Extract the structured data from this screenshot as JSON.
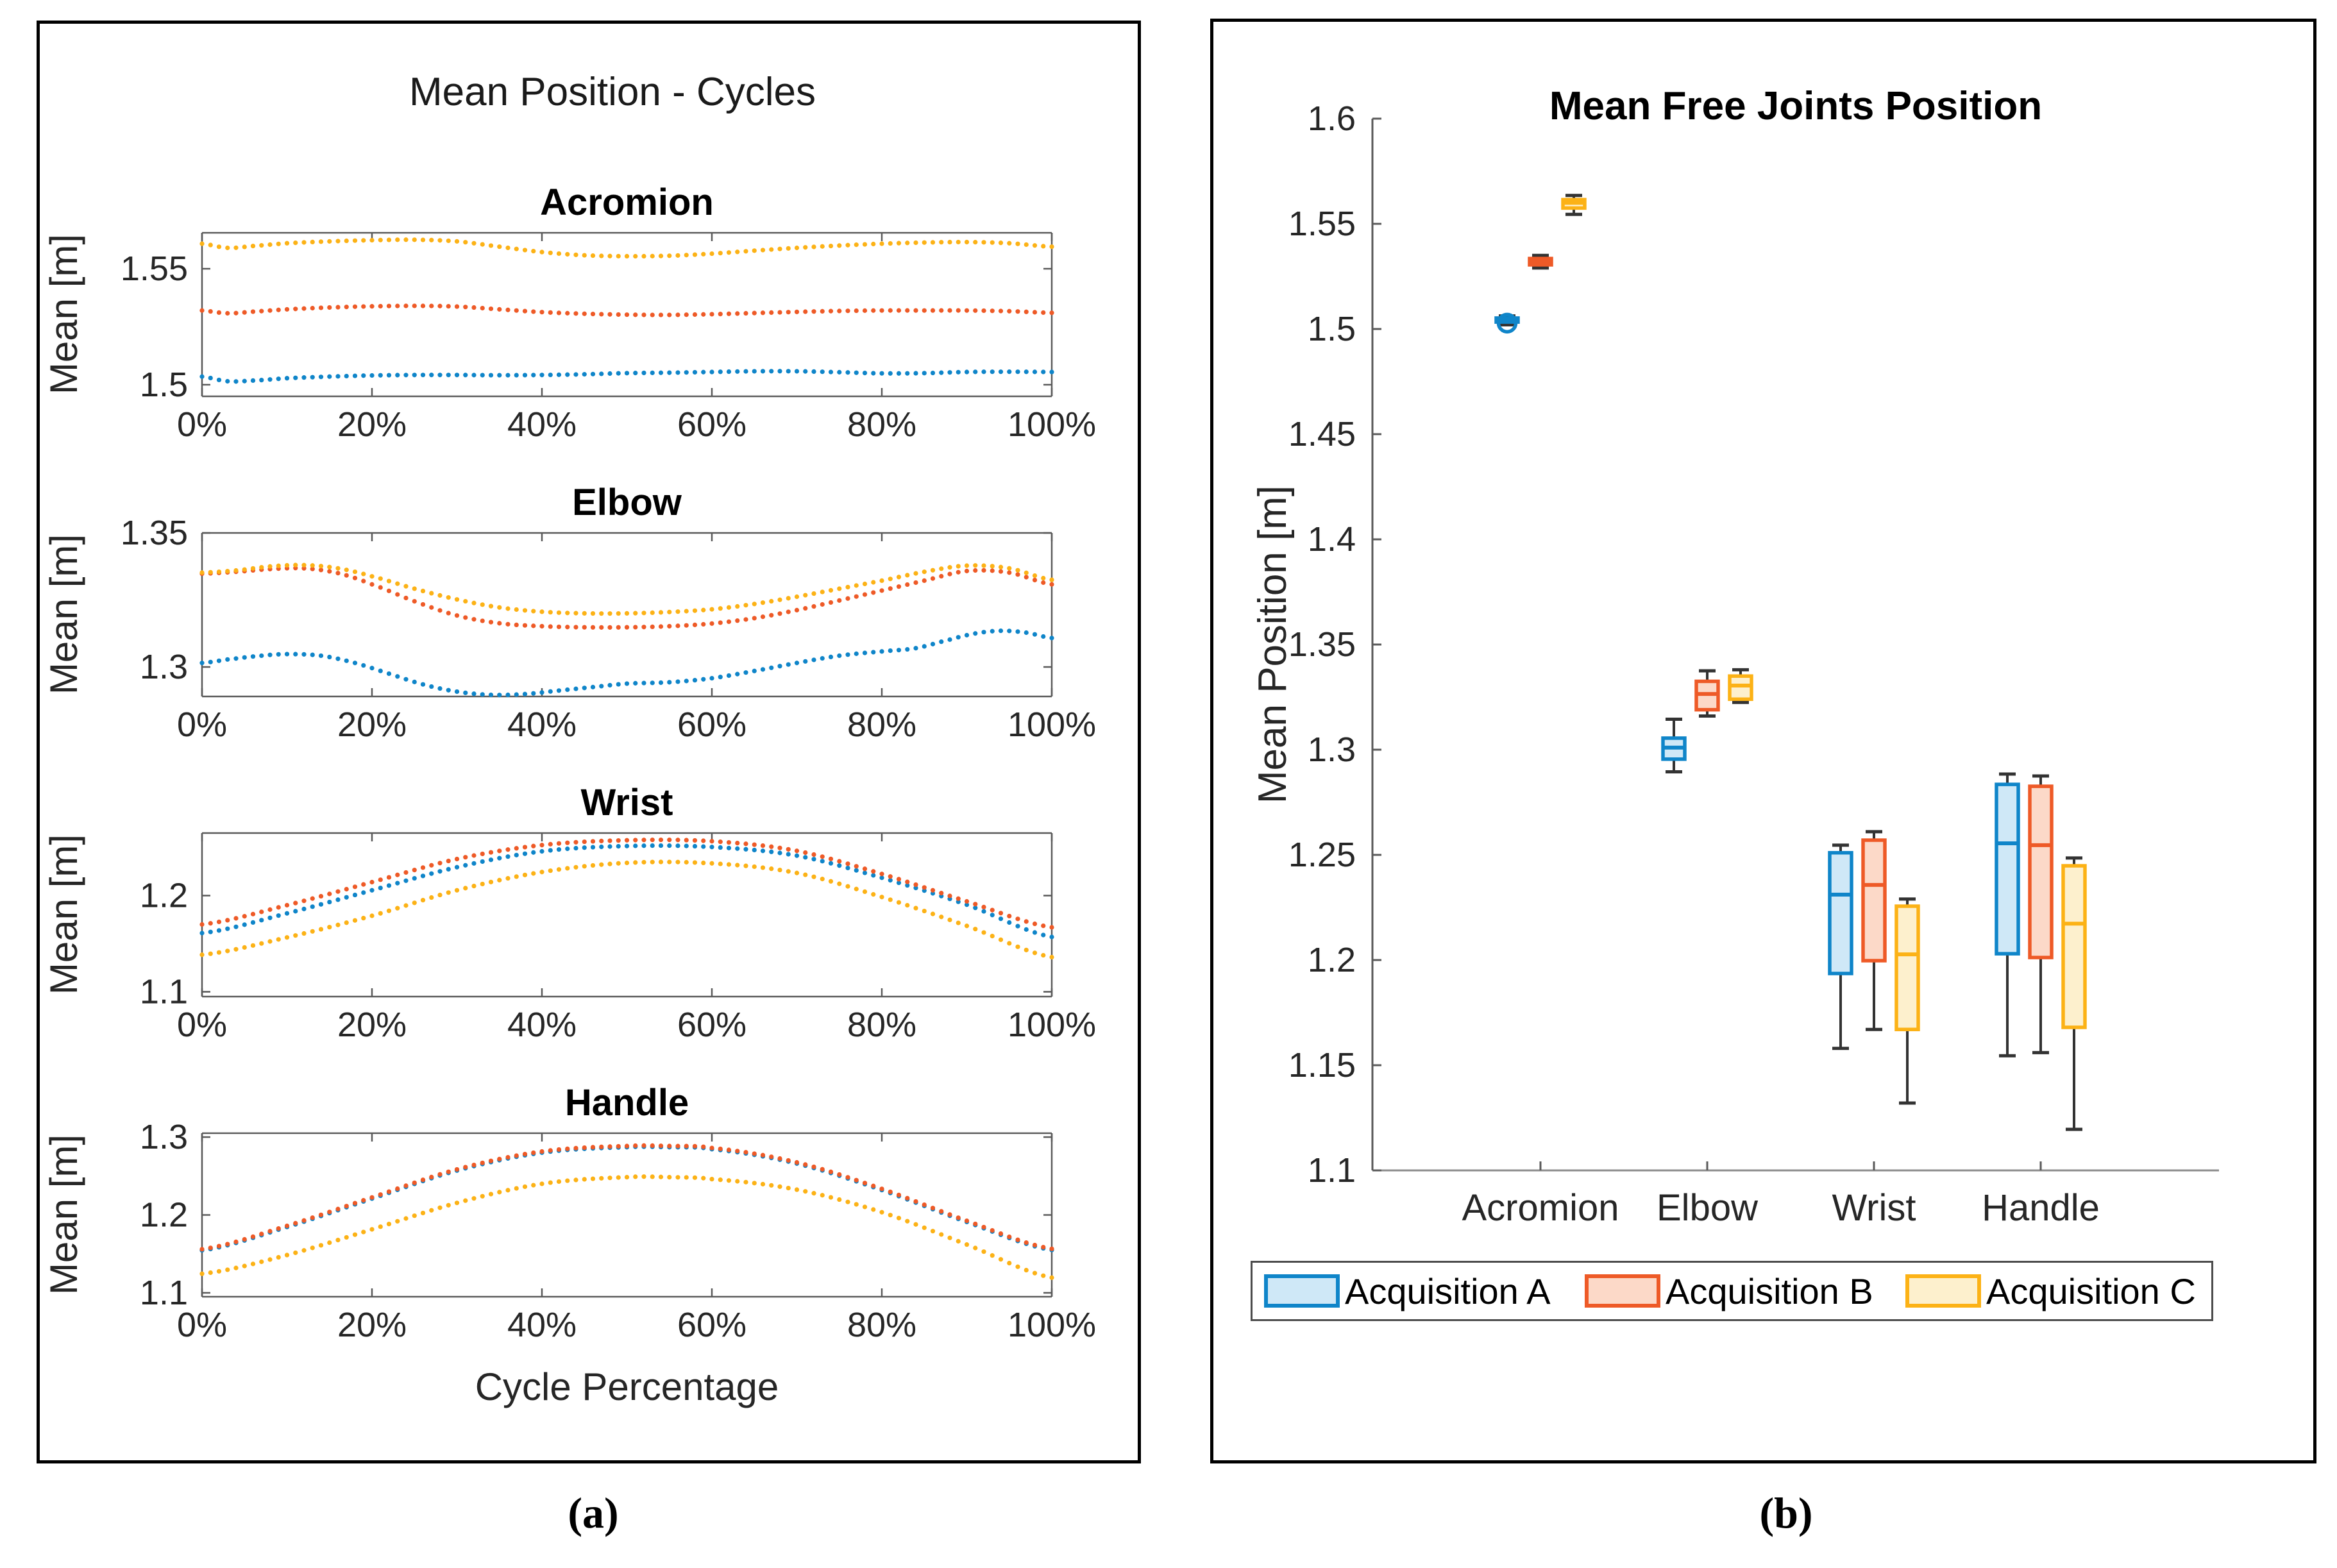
{
  "figure": {
    "captions": {
      "a": "(a)",
      "b": "(b)"
    }
  },
  "colors": {
    "blue": {
      "edge": "#0f85c9",
      "fill": "#cfe8f7"
    },
    "orange": {
      "edge": "#ee5a27",
      "fill": "#fcd9c8"
    },
    "yellow": {
      "edge": "#fcb216",
      "fill": "#fdf0cd"
    },
    "whisker": "#333333",
    "spine": "#5a5a5a"
  },
  "chart_data": [
    {
      "type": "line",
      "panel": "a",
      "title": "Mean Position - Cycles",
      "xlabel": "Cycle Percentage",
      "style": "dotted",
      "x_tick_values": [
        0,
        20,
        40,
        60,
        80,
        100
      ],
      "x_tick_labels": [
        "0%",
        "20%",
        "40%",
        "60%",
        "80%",
        "100%"
      ],
      "xlim": [
        0,
        100
      ],
      "grid": false,
      "subplots": [
        {
          "title": "Acromion",
          "ylabel": "Mean [m]",
          "ylim": [
            1.495,
            1.5655
          ],
          "yticks": [
            1.5,
            1.55
          ],
          "ytick_labels": [
            "1.5",
            "1.55"
          ],
          "series": [
            {
              "name": "Acquisition A",
              "color_key": "blue",
              "x": [
                0,
                3,
                6,
                10,
                15,
                20,
                25,
                30,
                35,
                40,
                45,
                50,
                55,
                60,
                65,
                70,
                75,
                80,
                85,
                90,
                95,
                100
              ],
              "y": [
                1.5035,
                1.5015,
                1.5018,
                1.5028,
                1.5035,
                1.504,
                1.5042,
                1.5042,
                1.5041,
                1.5042,
                1.5045,
                1.505,
                1.5052,
                1.5055,
                1.5058,
                1.5058,
                1.5054,
                1.5049,
                1.505,
                1.5055,
                1.5056,
                1.5055
              ]
            },
            {
              "name": "Acquisition B",
              "color_key": "orange",
              "x": [
                0,
                3,
                6,
                10,
                15,
                20,
                25,
                30,
                35,
                40,
                45,
                50,
                55,
                60,
                65,
                70,
                75,
                80,
                85,
                90,
                95,
                100
              ],
              "y": [
                1.532,
                1.5308,
                1.5315,
                1.5325,
                1.5333,
                1.5338,
                1.534,
                1.5337,
                1.5325,
                1.5313,
                1.5306,
                1.5302,
                1.5301,
                1.5304,
                1.5309,
                1.5314,
                1.5318,
                1.532,
                1.532,
                1.532,
                1.5317,
                1.531
              ]
            },
            {
              "name": "Acquisition C",
              "color_key": "yellow",
              "x": [
                0,
                3,
                6,
                10,
                15,
                20,
                25,
                30,
                35,
                40,
                45,
                50,
                55,
                60,
                65,
                70,
                75,
                80,
                85,
                90,
                95,
                100
              ],
              "y": [
                1.5608,
                1.559,
                1.5598,
                1.561,
                1.5618,
                1.5623,
                1.5625,
                1.5618,
                1.5595,
                1.5572,
                1.5558,
                1.5554,
                1.5556,
                1.5565,
                1.5578,
                1.559,
                1.56,
                1.5608,
                1.5613,
                1.5615,
                1.561,
                1.5595
              ]
            }
          ]
        },
        {
          "title": "Elbow",
          "ylabel": "Mean [m]",
          "ylim": [
            1.289,
            1.35
          ],
          "yticks": [
            1.3,
            1.35
          ],
          "ytick_labels": [
            "1.3",
            "1.35"
          ],
          "series": [
            {
              "name": "Acquisition A",
              "color_key": "blue",
              "x": [
                0,
                3,
                7,
                10,
                14,
                18,
                22,
                26,
                30,
                34,
                38,
                42,
                46,
                50,
                55,
                60,
                65,
                70,
                75,
                80,
                84,
                88,
                91,
                94,
                97,
                100
              ],
              "y": [
                1.3015,
                1.3028,
                1.3042,
                1.3048,
                1.3042,
                1.3015,
                1.2975,
                1.2935,
                1.2908,
                1.2896,
                1.2899,
                1.2912,
                1.2925,
                1.2938,
                1.2943,
                1.2958,
                1.2985,
                1.3015,
                1.3042,
                1.3058,
                1.307,
                1.3102,
                1.3125,
                1.3135,
                1.3128,
                1.3108
              ]
            },
            {
              "name": "Acquisition B",
              "color_key": "orange",
              "x": [
                0,
                4,
                8,
                12,
                16,
                20,
                25,
                30,
                35,
                40,
                45,
                50,
                55,
                60,
                65,
                70,
                75,
                80,
                85,
                90,
                95,
                100
              ],
              "y": [
                1.3348,
                1.3355,
                1.3365,
                1.3368,
                1.335,
                1.3308,
                1.3245,
                1.3192,
                1.3163,
                1.3152,
                1.3148,
                1.3148,
                1.3152,
                1.3162,
                1.3182,
                1.3212,
                1.3248,
                1.3285,
                1.3322,
                1.3358,
                1.3352,
                1.3308
              ]
            },
            {
              "name": "Acquisition C",
              "color_key": "yellow",
              "x": [
                0,
                4,
                8,
                12,
                16,
                20,
                25,
                30,
                35,
                40,
                45,
                50,
                55,
                60,
                65,
                70,
                75,
                80,
                85,
                90,
                95,
                100
              ],
              "y": [
                1.3352,
                1.336,
                1.3375,
                1.338,
                1.3368,
                1.3338,
                1.3292,
                1.3252,
                1.3222,
                1.3206,
                1.32,
                1.32,
                1.3205,
                1.3215,
                1.3235,
                1.3262,
                1.3292,
                1.3322,
                1.3355,
                1.3378,
                1.3368,
                1.3325
              ]
            }
          ]
        },
        {
          "title": "Wrist",
          "ylabel": "Mean [m]",
          "ylim": [
            1.095,
            1.265
          ],
          "yticks": [
            1.1,
            1.2
          ],
          "ytick_labels": [
            "1.1",
            "1.2"
          ],
          "series": [
            {
              "name": "Acquisition A",
              "color_key": "blue",
              "x": [
                0,
                10,
                20,
                30,
                40,
                50,
                60,
                70,
                80,
                90,
                100
              ],
              "y": [
                1.161,
                1.1815,
                1.2055,
                1.2295,
                1.246,
                1.2515,
                1.2505,
                1.2415,
                1.2185,
                1.1905,
                1.157
              ]
            },
            {
              "name": "Acquisition B",
              "color_key": "orange",
              "x": [
                0,
                10,
                20,
                30,
                40,
                50,
                60,
                70,
                80,
                90,
                100
              ],
              "y": [
                1.17,
                1.19,
                1.214,
                1.238,
                1.2525,
                1.2575,
                1.2565,
                1.2465,
                1.2225,
                1.194,
                1.167
              ]
            },
            {
              "name": "Acquisition C",
              "color_key": "yellow",
              "x": [
                0,
                10,
                20,
                30,
                40,
                50,
                60,
                70,
                80,
                90,
                100
              ],
              "y": [
                1.1385,
                1.1565,
                1.179,
                1.2055,
                1.2245,
                1.234,
                1.2335,
                1.2235,
                1.1985,
                1.1685,
                1.136
              ]
            }
          ]
        },
        {
          "title": "Handle",
          "ylabel": "Mean [m]",
          "ylim": [
            1.095,
            1.305
          ],
          "yticks": [
            1.1,
            1.2,
            1.3
          ],
          "ytick_labels": [
            "1.1",
            "1.2",
            "1.3"
          ],
          "series": [
            {
              "name": "Acquisition A",
              "color_key": "blue",
              "x": [
                0,
                10,
                20,
                30,
                40,
                50,
                55,
                60,
                70,
                80,
                90,
                100
              ],
              "y": [
                1.1545,
                1.1845,
                1.221,
                1.257,
                1.28,
                1.287,
                1.287,
                1.2845,
                1.266,
                1.232,
                1.191,
                1.155
              ]
            },
            {
              "name": "Acquisition B",
              "color_key": "orange",
              "x": [
                0,
                10,
                20,
                30,
                40,
                50,
                55,
                60,
                70,
                80,
                90,
                100
              ],
              "y": [
                1.156,
                1.186,
                1.2225,
                1.2585,
                1.2815,
                1.2885,
                1.2885,
                1.286,
                1.2675,
                1.2335,
                1.1925,
                1.1565
              ]
            },
            {
              "name": "Acquisition C",
              "color_key": "yellow",
              "x": [
                0,
                10,
                20,
                30,
                40,
                50,
                55,
                60,
                70,
                80,
                90,
                100
              ],
              "y": [
                1.1245,
                1.1485,
                1.1815,
                1.2155,
                1.24,
                1.2485,
                1.2485,
                1.246,
                1.2325,
                1.2035,
                1.162,
                1.1195
              ]
            }
          ]
        }
      ]
    },
    {
      "type": "boxplot",
      "panel": "b",
      "title": "Mean Free Joints Position",
      "ylabel": "Mean Position [m]",
      "ylim": [
        1.1,
        1.6
      ],
      "yticks": [
        1.1,
        1.15,
        1.2,
        1.25,
        1.3,
        1.35,
        1.4,
        1.45,
        1.5,
        1.55,
        1.6
      ],
      "ytick_labels": [
        "1.1",
        "1.15",
        "1.2",
        "1.25",
        "1.3",
        "1.35",
        "1.4",
        "1.45",
        "1.5",
        "1.55",
        "1.6"
      ],
      "categories": [
        "Acromion",
        "Elbow",
        "Wrist",
        "Handle"
      ],
      "legend_position": "below",
      "series": [
        {
          "name": "Acquisition A",
          "color_key": "blue",
          "boxes": [
            {
              "category": "Acromion",
              "q1": 1.5033,
              "median": 1.5045,
              "q3": 1.5052,
              "whisker_low": 1.502,
              "whisker_high": 1.5062,
              "outliers": [
                1.5028
              ]
            },
            {
              "category": "Elbow",
              "q1": 1.2955,
              "median": 1.301,
              "q3": 1.3055,
              "whisker_low": 1.2895,
              "whisker_high": 1.3145,
              "outliers": []
            },
            {
              "category": "Wrist",
              "q1": 1.1936,
              "median": 1.2311,
              "q3": 1.251,
              "whisker_low": 1.158,
              "whisker_high": 1.2546,
              "outliers": []
            },
            {
              "category": "Handle",
              "q1": 1.203,
              "median": 1.2555,
              "q3": 1.2835,
              "whisker_low": 1.1545,
              "whisker_high": 1.2884,
              "outliers": []
            }
          ]
        },
        {
          "name": "Acquisition B",
          "color_key": "orange",
          "boxes": [
            {
              "category": "Acromion",
              "q1": 1.5305,
              "median": 1.532,
              "q3": 1.5335,
              "whisker_low": 1.529,
              "whisker_high": 1.535,
              "outliers": []
            },
            {
              "category": "Elbow",
              "q1": 1.319,
              "median": 1.3265,
              "q3": 1.3325,
              "whisker_low": 1.316,
              "whisker_high": 1.3375,
              "outliers": []
            },
            {
              "category": "Wrist",
              "q1": 1.1997,
              "median": 1.2357,
              "q3": 1.257,
              "whisker_low": 1.167,
              "whisker_high": 1.261,
              "outliers": []
            },
            {
              "category": "Handle",
              "q1": 1.2012,
              "median": 1.2546,
              "q3": 1.2826,
              "whisker_low": 1.156,
              "whisker_high": 1.2875,
              "outliers": []
            }
          ]
        },
        {
          "name": "Acquisition C",
          "color_key": "yellow",
          "boxes": [
            {
              "category": "Acromion",
              "q1": 1.5575,
              "median": 1.56,
              "q3": 1.5615,
              "whisker_low": 1.5545,
              "whisker_high": 1.5635,
              "outliers": []
            },
            {
              "category": "Elbow",
              "q1": 1.324,
              "median": 1.3305,
              "q3": 1.335,
              "whisker_low": 1.3225,
              "whisker_high": 1.338,
              "outliers": []
            },
            {
              "category": "Wrist",
              "q1": 1.167,
              "median": 1.2027,
              "q3": 1.2256,
              "whisker_low": 1.132,
              "whisker_high": 1.229,
              "outliers": []
            },
            {
              "category": "Handle",
              "q1": 1.168,
              "median": 1.2173,
              "q3": 1.2448,
              "whisker_low": 1.1195,
              "whisker_high": 1.2485,
              "outliers": []
            }
          ]
        }
      ]
    }
  ]
}
